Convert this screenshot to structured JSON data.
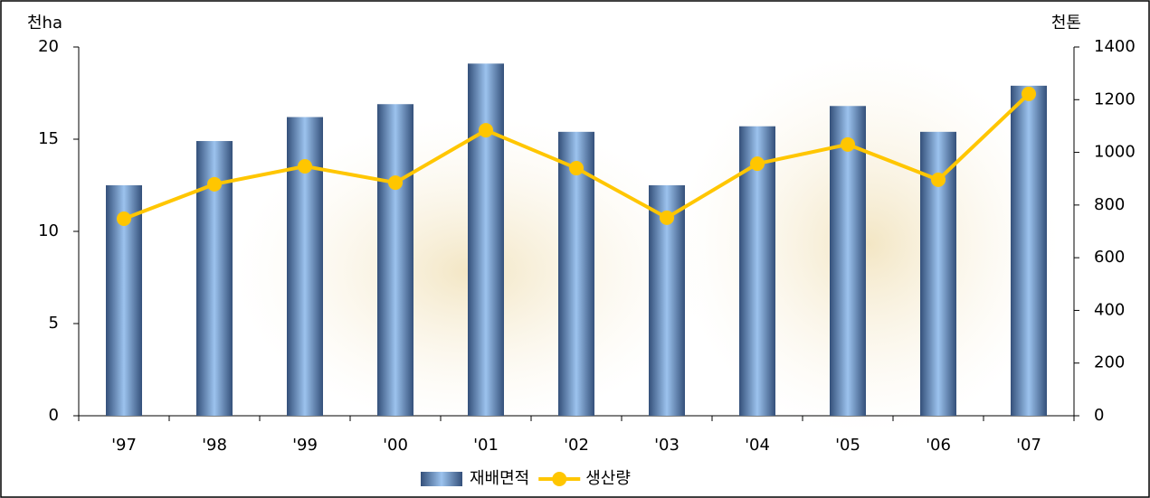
{
  "chart_data": {
    "type": "bar",
    "y_label": "천ha",
    "y2_label": "천톤",
    "categories": [
      "'97",
      "'98",
      "'99",
      "'00",
      "'01",
      "'02",
      "'03",
      "'04",
      "'05",
      "'06",
      "'07"
    ],
    "series": [
      {
        "name": "재배면적",
        "type": "bar",
        "color": "#9cc3ee",
        "values": [
          12.5,
          14.9,
          16.2,
          16.9,
          19.1,
          15.4,
          12.5,
          15.7,
          16.8,
          15.4,
          17.9
        ]
      },
      {
        "name": "생산량",
        "type": "line",
        "axis": "y2",
        "color": "#ffc600",
        "values": [
          748,
          879,
          947,
          885,
          1084,
          940,
          752,
          957,
          1030,
          896,
          1222
        ]
      }
    ],
    "ylim": [
      0,
      20
    ],
    "yticks": [
      0,
      5,
      10,
      15,
      20
    ],
    "y2lim": [
      0,
      1400
    ],
    "y2ticks": [
      0,
      200,
      400,
      600,
      800,
      1000,
      1200,
      1400
    ],
    "legend": "bottom"
  }
}
